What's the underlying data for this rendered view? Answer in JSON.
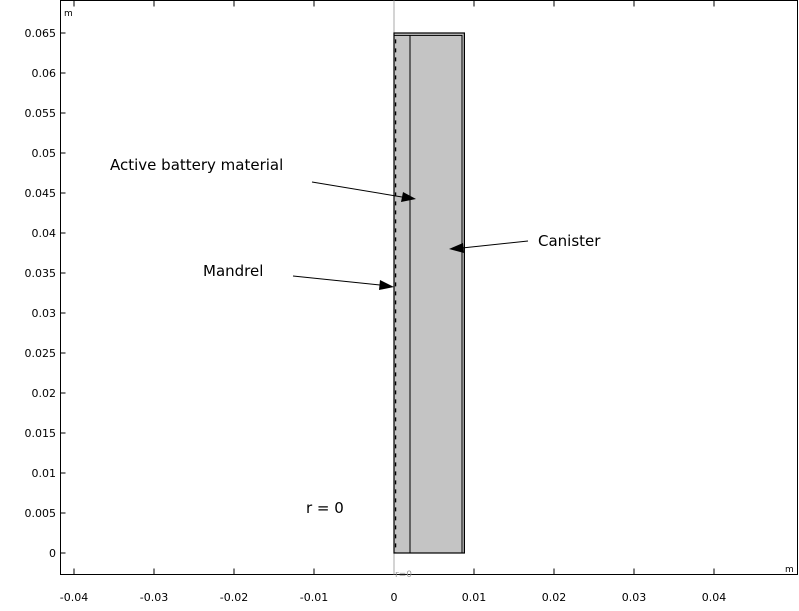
{
  "plot": {
    "x_unit": "m",
    "y_unit": "m",
    "x_ticks": [
      {
        "value": -0.04,
        "label": "-0.04"
      },
      {
        "value": -0.03,
        "label": "-0.03"
      },
      {
        "value": -0.02,
        "label": "-0.02"
      },
      {
        "value": -0.01,
        "label": "-0.01"
      },
      {
        "value": 0,
        "label": "0"
      },
      {
        "value": 0.01,
        "label": "0.01"
      },
      {
        "value": 0.02,
        "label": "0.02"
      },
      {
        "value": 0.03,
        "label": "0.03"
      },
      {
        "value": 0.04,
        "label": "0.04"
      }
    ],
    "y_ticks": [
      {
        "value": 0,
        "label": "0"
      },
      {
        "value": 0.005,
        "label": "0.005"
      },
      {
        "value": 0.01,
        "label": "0.01"
      },
      {
        "value": 0.015,
        "label": "0.015"
      },
      {
        "value": 0.02,
        "label": "0.02"
      },
      {
        "value": 0.025,
        "label": "0.025"
      },
      {
        "value": 0.03,
        "label": "0.03"
      },
      {
        "value": 0.035,
        "label": "0.035"
      },
      {
        "value": 0.04,
        "label": "0.04"
      },
      {
        "value": 0.045,
        "label": "0.045"
      },
      {
        "value": 0.05,
        "label": "0.05"
      },
      {
        "value": 0.055,
        "label": "0.055"
      },
      {
        "value": 0.06,
        "label": "0.06"
      },
      {
        "value": 0.065,
        "label": "0.065"
      }
    ],
    "axis_marker": "r=0"
  },
  "geometry": {
    "mandrel_r": 0.0002,
    "active_r_max": 0.002,
    "canister_r_max": 0.0088,
    "wall_thickness": 0.0003,
    "height": 0.065
  },
  "annotations": {
    "active_material": "Active battery material",
    "canister": "Canister",
    "mandrel": "Mandrel",
    "r_zero": "r = 0"
  },
  "colors": {
    "domain_fill": "#c4c4c4",
    "axis_line": "#a8a8a8"
  }
}
